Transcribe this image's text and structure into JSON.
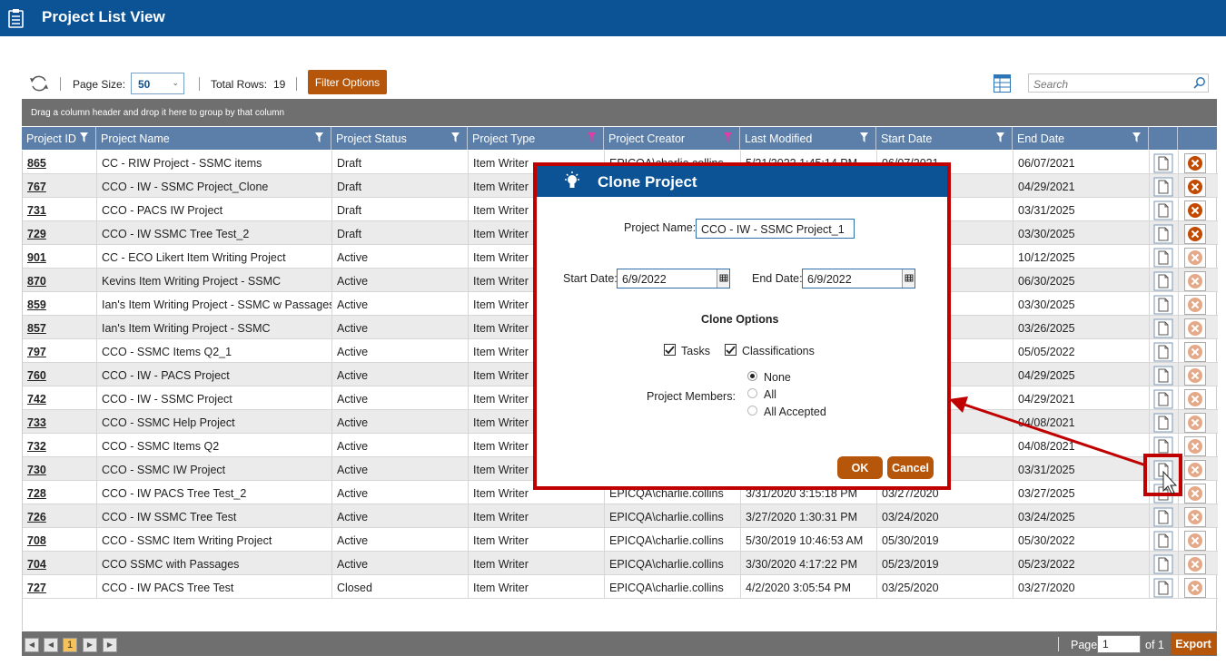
{
  "header": {
    "title": "Project List View"
  },
  "toolbar": {
    "page_size_label": "Page Size:",
    "page_size_value": "50",
    "total_rows_label": "Total Rows:",
    "total_rows_value": "19",
    "filter_button": "Filter Options",
    "search_placeholder": "Search"
  },
  "grid": {
    "group_hint": "Drag a column header and drop it here to group by that column",
    "columns": [
      "Project ID",
      "Project Name",
      "Project Status",
      "Project Type",
      "Project Creator",
      "Last Modified",
      "Start Date",
      "End Date"
    ],
    "rows": [
      {
        "id": "865",
        "name": "CC - RIW Project - SSMC items",
        "status": "Draft",
        "type": "Item Writer",
        "creator": "EPICQA\\charlie.collins",
        "modified": "5/21/2022 1:45:14 PM",
        "start": "06/07/2021",
        "end": "06/07/2021"
      },
      {
        "id": "767",
        "name": "CCO - IW - SSMC Project_Clone",
        "status": "Draft",
        "type": "Item Writer",
        "creator": "",
        "modified": "",
        "start": "",
        "end": "04/29/2021"
      },
      {
        "id": "731",
        "name": "CCO - PACS IW Project",
        "status": "Draft",
        "type": "Item Writer",
        "creator": "",
        "modified": "",
        "start": "",
        "end": "03/31/2025"
      },
      {
        "id": "729",
        "name": "CCO - IW SSMC Tree Test_2",
        "status": "Draft",
        "type": "Item Writer",
        "creator": "",
        "modified": "",
        "start": "",
        "end": "03/30/2025"
      },
      {
        "id": "901",
        "name": "CC - ECO Likert Item Writing Project",
        "status": "Active",
        "type": "Item Writer",
        "creator": "",
        "modified": "",
        "start": "",
        "end": "10/12/2025"
      },
      {
        "id": "870",
        "name": "Kevins Item Writing Project - SSMC",
        "status": "Active",
        "type": "Item Writer",
        "creator": "",
        "modified": "",
        "start": "",
        "end": "06/30/2025"
      },
      {
        "id": "859",
        "name": "Ian's Item Writing Project - SSMC w Passages",
        "status": "Active",
        "type": "Item Writer",
        "creator": "",
        "modified": "",
        "start": "",
        "end": "03/30/2025"
      },
      {
        "id": "857",
        "name": "Ian's Item Writing Project - SSMC",
        "status": "Active",
        "type": "Item Writer",
        "creator": "",
        "modified": "",
        "start": "",
        "end": "03/26/2025"
      },
      {
        "id": "797",
        "name": "CCO - SSMC Items Q2_1",
        "status": "Active",
        "type": "Item Writer",
        "creator": "",
        "modified": "",
        "start": "",
        "end": "05/05/2022"
      },
      {
        "id": "760",
        "name": "CCO - IW - PACS Project",
        "status": "Active",
        "type": "Item Writer",
        "creator": "",
        "modified": "",
        "start": "",
        "end": "04/29/2025"
      },
      {
        "id": "742",
        "name": "CCO - IW - SSMC Project",
        "status": "Active",
        "type": "Item Writer",
        "creator": "",
        "modified": "",
        "start": "",
        "end": "04/29/2021"
      },
      {
        "id": "733",
        "name": "CCO - SSMC Help Project",
        "status": "Active",
        "type": "Item Writer",
        "creator": "",
        "modified": "",
        "start": "",
        "end": "04/08/2021"
      },
      {
        "id": "732",
        "name": "CCO - SSMC Items Q2",
        "status": "Active",
        "type": "Item Writer",
        "creator": "",
        "modified": "",
        "start": "",
        "end": "04/08/2021"
      },
      {
        "id": "730",
        "name": "CCO - SSMC IW Project",
        "status": "Active",
        "type": "Item Writer",
        "creator": "",
        "modified": "",
        "start": "",
        "end": "03/31/2025"
      },
      {
        "id": "728",
        "name": "CCO - IW PACS Tree Test_2",
        "status": "Active",
        "type": "Item Writer",
        "creator": "EPICQA\\charlie.collins",
        "modified": "3/31/2020 3:15:18 PM",
        "start": "03/27/2020",
        "end": "03/27/2025"
      },
      {
        "id": "726",
        "name": "CCO - IW SSMC Tree Test",
        "status": "Active",
        "type": "Item Writer",
        "creator": "EPICQA\\charlie.collins",
        "modified": "3/27/2020 1:30:31 PM",
        "start": "03/24/2020",
        "end": "03/24/2025"
      },
      {
        "id": "708",
        "name": "CCO - SSMC Item Writing Project",
        "status": "Active",
        "type": "Item Writer",
        "creator": "EPICQA\\charlie.collins",
        "modified": "5/30/2019 10:46:53 AM",
        "start": "05/30/2019",
        "end": "05/30/2022"
      },
      {
        "id": "704",
        "name": "CCO SSMC with Passages",
        "status": "Active",
        "type": "Item Writer",
        "creator": "EPICQA\\charlie.collins",
        "modified": "3/30/2020 4:17:22 PM",
        "start": "05/23/2019",
        "end": "05/23/2022"
      },
      {
        "id": "727",
        "name": "CCO - IW PACS Tree Test",
        "status": "Closed",
        "type": "Item Writer",
        "creator": "EPICQA\\charlie.collins",
        "modified": "4/2/2020 3:05:54 PM",
        "start": "03/25/2020",
        "end": "03/27/2020"
      }
    ]
  },
  "footer": {
    "current_page": "1",
    "page_label": "Page",
    "page_input": "1",
    "of_label": "of 1",
    "export_button": "Export"
  },
  "dialog": {
    "title": "Clone Project",
    "project_name_label": "Project Name:",
    "project_name_value": "CCO - IW - SSMC Project_1",
    "start_date_label": "Start Date:",
    "start_date_value": "6/9/2022",
    "end_date_label": "End Date:",
    "end_date_value": "6/9/2022",
    "clone_options_label": "Clone Options",
    "tasks_label": "Tasks",
    "classifications_label": "Classifications",
    "members_label": "Project Members:",
    "member_options": [
      "None",
      "All",
      "All Accepted"
    ],
    "ok_button": "OK",
    "cancel_button": "Cancel"
  },
  "colors": {
    "header": "#0b5394",
    "accent": "#b6560b",
    "annotation": "#c00000"
  }
}
